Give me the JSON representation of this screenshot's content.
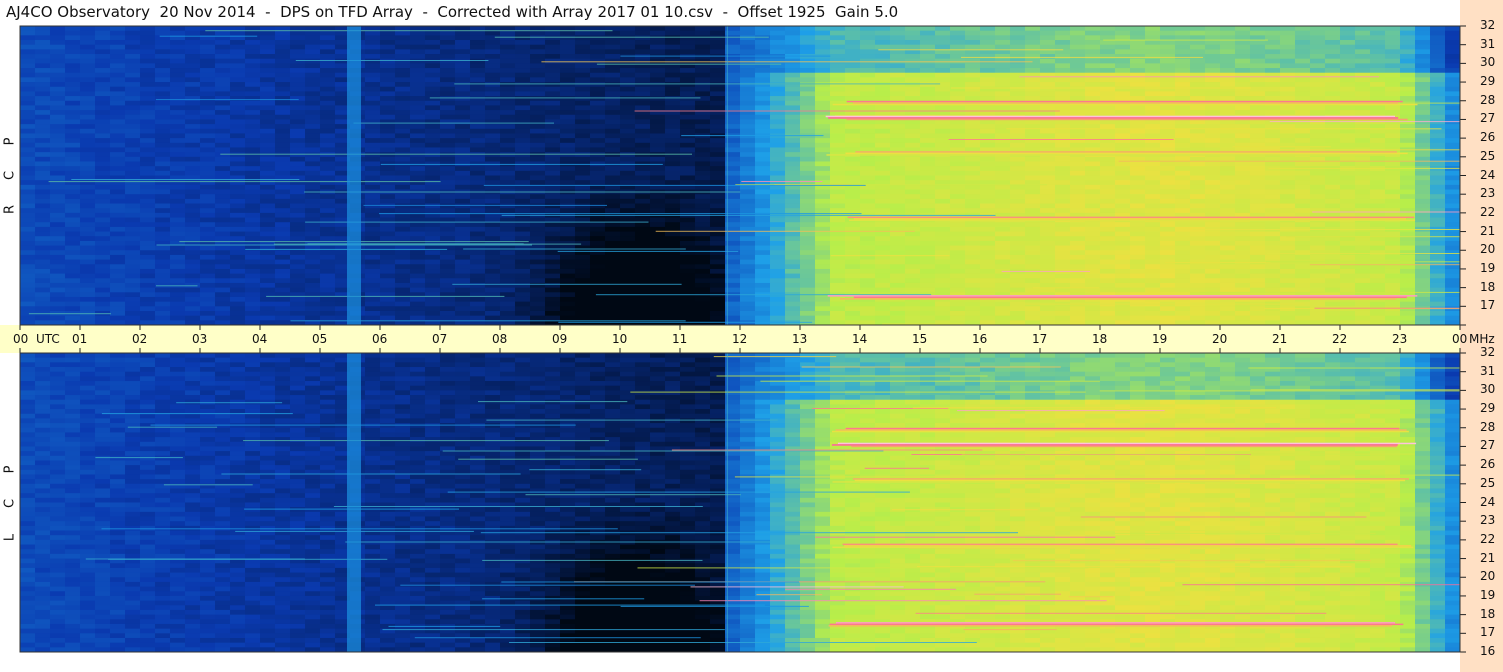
{
  "title": "AJ4CO Observatory  20 Nov 2014  -  DPS on TFD Array  -  Corrected with Array 2017 01 10.csv  -  Offset 1925  Gain 5.0",
  "chart_data": {
    "type": "heatmap",
    "x_unit": "UTC",
    "y_unit": "MHz",
    "x_ticks": [
      "00",
      "01",
      "02",
      "03",
      "04",
      "05",
      "06",
      "07",
      "08",
      "09",
      "10",
      "11",
      "12",
      "13",
      "14",
      "15",
      "16",
      "17",
      "18",
      "19",
      "20",
      "21",
      "22",
      "23",
      "00"
    ],
    "y_ticks": [
      "32",
      "31",
      "30",
      "29",
      "28",
      "27",
      "26",
      "25",
      "24",
      "23",
      "22",
      "21",
      "20",
      "19",
      "18",
      "17",
      "16"
    ],
    "x_range": [
      0,
      24
    ],
    "y_range": [
      16,
      32
    ],
    "panels": [
      {
        "name_letters": [
          "R",
          "C",
          "P"
        ]
      },
      {
        "name_letters": [
          "L",
          "C",
          "P"
        ]
      }
    ],
    "colors": {
      "night": "#000814",
      "low": "#0a3ab0",
      "mid": "#1ea0e8",
      "day": "#b8ee4a",
      "high": "#f0e040",
      "peak": "#ff60a0",
      "sat": "#ffffff"
    }
  },
  "labels": {
    "utc": "UTC",
    "mhz": "MHz"
  }
}
